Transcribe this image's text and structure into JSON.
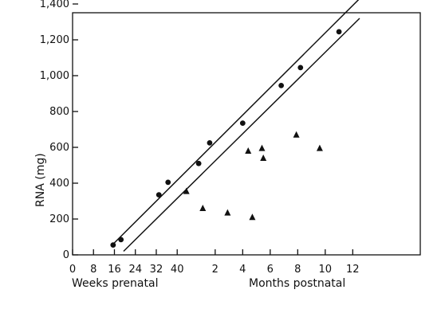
{
  "chart_data": {
    "type": "scatter",
    "title": "",
    "ylabel": "RNA (mg)",
    "xlabel_prenatal": "Weeks prenatal",
    "xlabel_postnatal": "Months postnatal",
    "ylim": [
      0,
      1400
    ],
    "y_ticks": [
      0,
      200,
      400,
      600,
      800,
      1000,
      1200,
      1400
    ],
    "y_tick_labels": [
      "0",
      "200",
      "400",
      "600",
      "800",
      "1,000",
      "1,200",
      "1,400"
    ],
    "x_tick_labels": [
      "0",
      "8",
      "16",
      "24",
      "32",
      "40",
      "2",
      "4",
      "6",
      "8",
      "10",
      "12"
    ],
    "grid": false,
    "series": [
      {
        "marker": "circle",
        "points": [
          {
            "x": "15.5 weeks prenatal",
            "y": 55
          },
          {
            "x": "18.5 weeks prenatal",
            "y": 85
          },
          {
            "x": "33 weeks prenatal",
            "y": 335
          },
          {
            "x": "36.5 weeks prenatal",
            "y": 405
          },
          {
            "x": "0.8 months postnatal",
            "y": 510
          },
          {
            "x": "1.6 months postnatal",
            "y": 625
          },
          {
            "x": "4 months postnatal",
            "y": 735
          },
          {
            "x": "6.8 months postnatal",
            "y": 945
          },
          {
            "x": "8.2 months postnatal",
            "y": 1045
          },
          {
            "x": "11 months postnatal",
            "y": 1245
          }
        ]
      },
      {
        "marker": "triangle",
        "points": [
          {
            "x": "43.5 weeks prenatal",
            "y": 355
          },
          {
            "x": "1.1 months postnatal",
            "y": 260
          },
          {
            "x": "2.9 months postnatal",
            "y": 235
          },
          {
            "x": "4.4 months postnatal",
            "y": 580
          },
          {
            "x": "4.7 months postnatal",
            "y": 210
          },
          {
            "x": "5.4 months postnatal",
            "y": 595
          },
          {
            "x": "5.5 months postnatal",
            "y": 540
          },
          {
            "x": "7.9 months postnatal",
            "y": 670
          },
          {
            "x": "9.6 months postnatal",
            "y": 595
          }
        ]
      }
    ],
    "band_lines": [
      {
        "from": {
          "x": "15.5 weeks prenatal",
          "y": 60
        },
        "to": {
          "x": "12.5 months postnatal",
          "y": 1430
        }
      },
      {
        "from": {
          "x": "19.5 weeks prenatal",
          "y": 20
        },
        "to": {
          "x": "12.5 months postnatal",
          "y": 1320
        }
      }
    ]
  }
}
